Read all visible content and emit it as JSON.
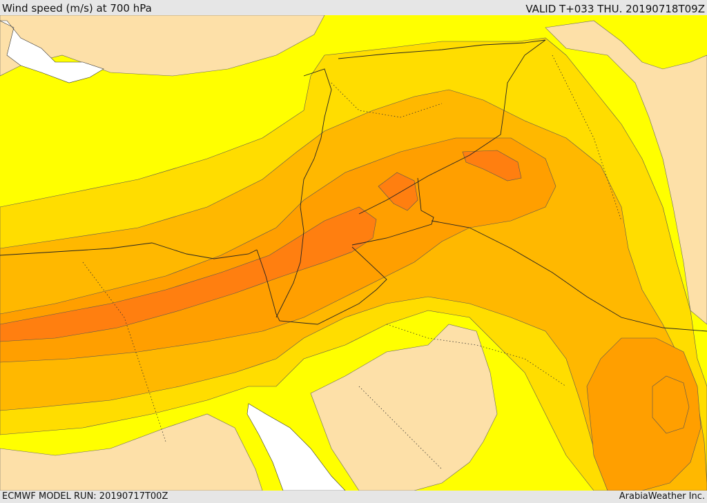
{
  "header": {
    "title": "Wind speed (m/s) at 700 hPa",
    "valid_time": "VALID T+033 THU. 20190718T09Z"
  },
  "footer": {
    "model_run": "ECMWF MODEL RUN: 20190717T00Z",
    "provider": "ArabiaWeather Inc."
  },
  "map": {
    "variable": "wind speed",
    "level": "700 hPa",
    "colors": {
      "sea_or_nodata": "#ffffff",
      "lightest": "#fde0a8",
      "light": "#ffff00",
      "medium": "#ffdd00",
      "strong": "#ffb800",
      "stronger": "#ff9f00",
      "strongest": "#ff7f10"
    }
  }
}
